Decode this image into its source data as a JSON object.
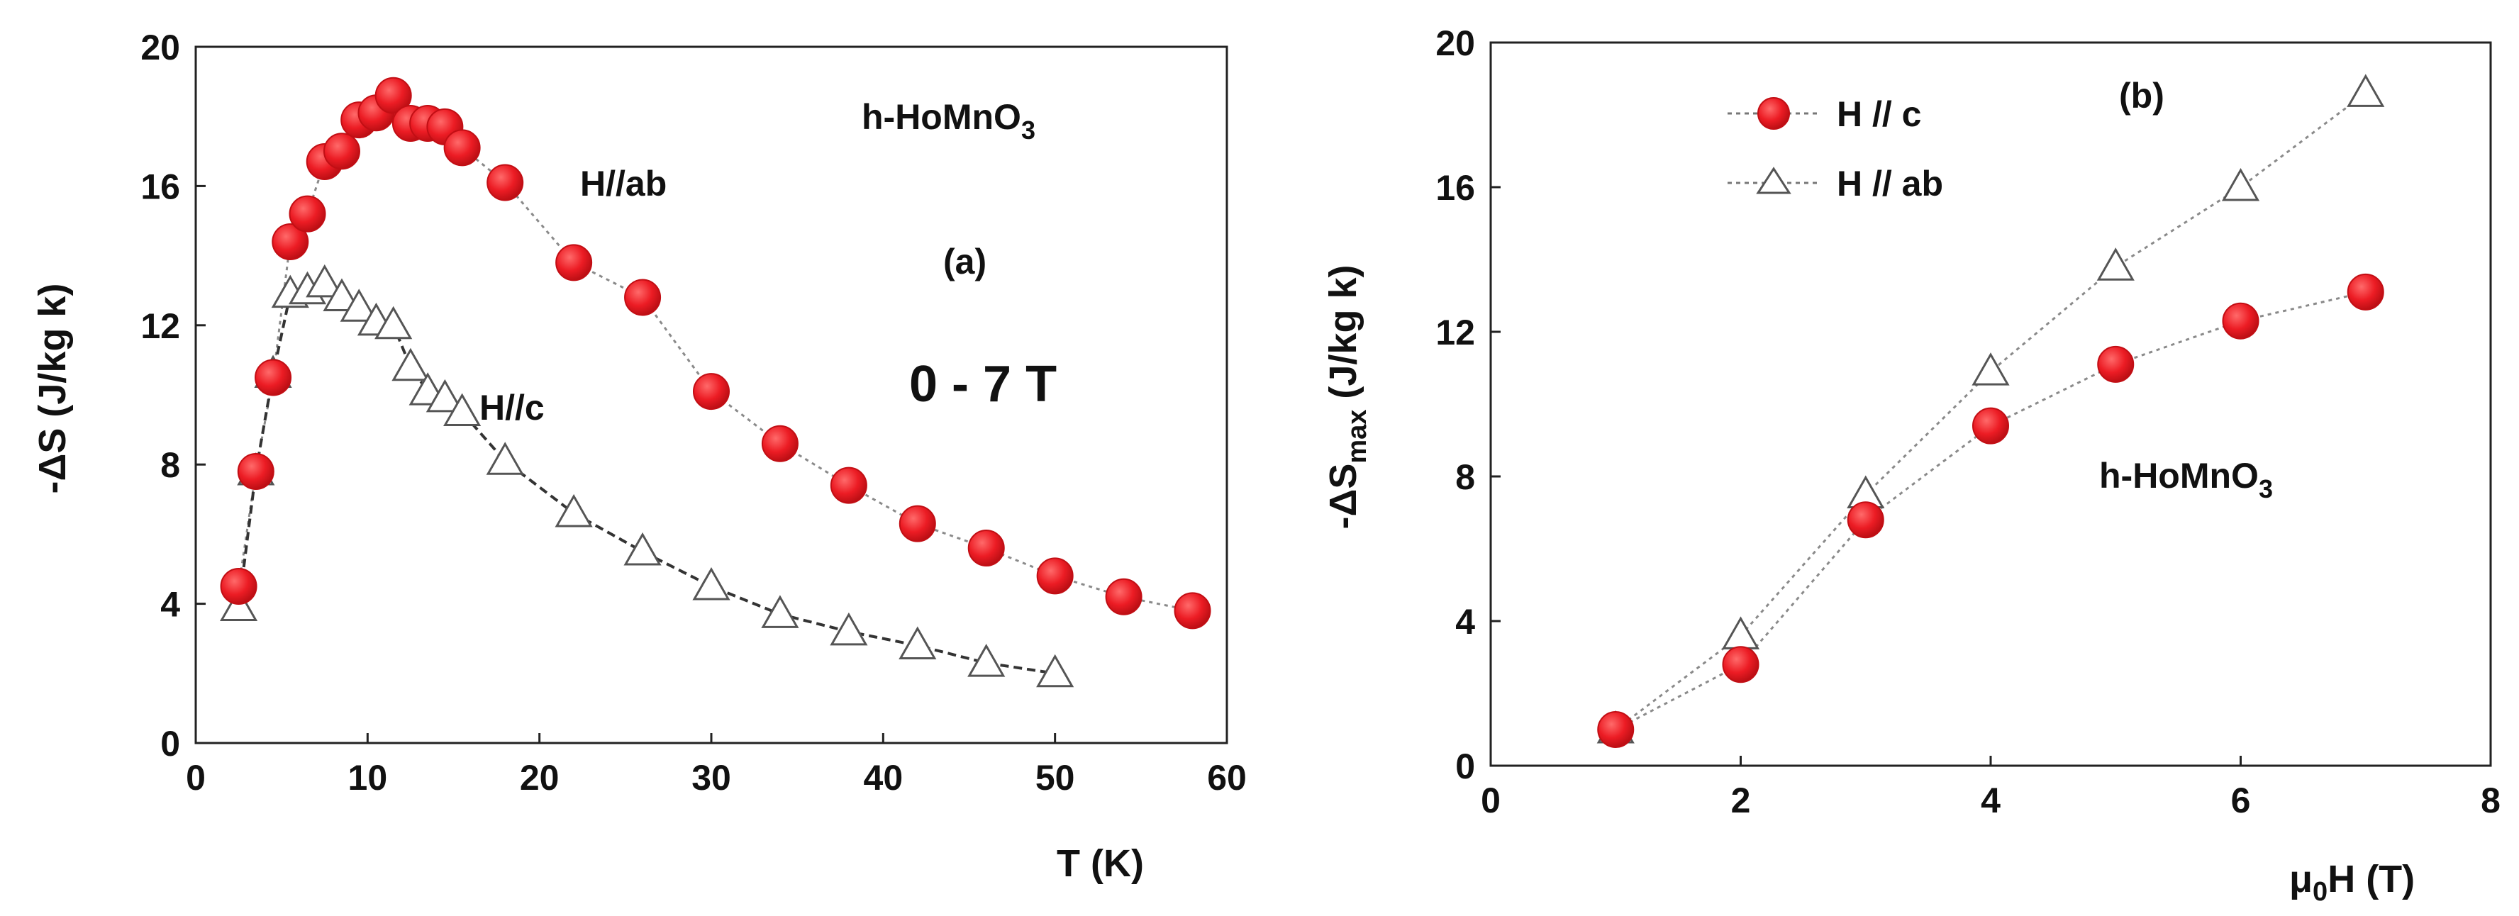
{
  "chart_data": [
    {
      "id": "panel-a",
      "type": "scatter",
      "xlabel": "T (K)",
      "ylabel": "-ΔS (J/kg k)",
      "xlim": [
        0,
        60
      ],
      "ylim": [
        0,
        20
      ],
      "xticks": [
        0,
        10,
        20,
        30,
        40,
        50,
        60
      ],
      "yticks": [
        0,
        4,
        8,
        12,
        16,
        20
      ],
      "grid": false,
      "annotations": {
        "compound": {
          "main": "h-HoMnO",
          "sub": "3"
        },
        "panel_label": "(a)",
        "field_range": "0 - 7 T",
        "series_ab_label": "H//ab",
        "series_c_label": "H//c"
      },
      "series": [
        {
          "name": "H//ab",
          "marker": "circle",
          "color": "#e8141c",
          "line": "dotted",
          "x": [
            2.5,
            3.5,
            4.5,
            5.5,
            6.5,
            7.5,
            8.5,
            9.5,
            10.5,
            11.5,
            12.5,
            13.5,
            14.5,
            15.5,
            18,
            22,
            26,
            30,
            34,
            38,
            42,
            46,
            50,
            54,
            58
          ],
          "y": [
            4.5,
            7.8,
            10.5,
            14.4,
            15.2,
            16.7,
            17.0,
            17.9,
            18.1,
            18.6,
            17.8,
            17.8,
            17.7,
            17.1,
            16.1,
            13.8,
            12.8,
            10.1,
            8.6,
            7.4,
            6.3,
            5.6,
            4.8,
            4.2,
            3.8
          ]
        },
        {
          "name": "H//c",
          "marker": "triangle",
          "color": "#444444",
          "line": "dashed",
          "x": [
            2.5,
            3.5,
            4.5,
            5.5,
            6.5,
            7.5,
            8.5,
            9.5,
            10.5,
            11.5,
            12.5,
            13.5,
            14.5,
            15.5,
            18,
            22,
            26,
            30,
            34,
            38,
            42,
            46,
            50
          ],
          "y": [
            3.9,
            7.8,
            10.6,
            12.9,
            13.0,
            13.2,
            12.8,
            12.5,
            12.1,
            12.0,
            10.8,
            10.1,
            9.9,
            9.5,
            8.1,
            6.6,
            5.5,
            4.5,
            3.7,
            3.2,
            2.8,
            2.3,
            2.0
          ]
        }
      ]
    },
    {
      "id": "panel-b",
      "type": "scatter",
      "xlabel_parts": {
        "mu": "μ",
        "sub": "0",
        "rest": "H  (T)"
      },
      "ylabel_parts": {
        "main": "-ΔS",
        "sub": "max",
        "rest": " (J/kg k)"
      },
      "xlim": [
        0,
        8
      ],
      "ylim": [
        0,
        20
      ],
      "xticks": [
        0,
        2,
        4,
        6,
        8
      ],
      "yticks": [
        0,
        4,
        8,
        12,
        16,
        20
      ],
      "grid": false,
      "legend_position": "top-left",
      "annotations": {
        "panel_label": "(b)",
        "compound": {
          "main": "h-HoMnO",
          "sub": "3"
        }
      },
      "series": [
        {
          "name": "H // c",
          "marker": "circle",
          "color": "#e8141c",
          "line": "dotted",
          "x": [
            1,
            2,
            3,
            4,
            5,
            6,
            7
          ],
          "y": [
            1.0,
            2.8,
            6.8,
            9.4,
            11.1,
            12.3,
            13.1
          ]
        },
        {
          "name": "H // ab",
          "marker": "triangle",
          "color": "#444444",
          "line": "dotted",
          "x": [
            1,
            2,
            3,
            4,
            5,
            6,
            7
          ],
          "y": [
            1.0,
            3.6,
            7.5,
            10.9,
            13.8,
            16.0,
            18.6
          ]
        }
      ]
    }
  ]
}
